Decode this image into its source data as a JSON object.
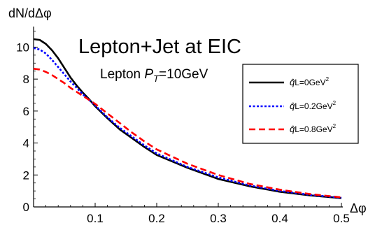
{
  "chart_data": {
    "type": "line",
    "title": "Lepton+Jet at EIC",
    "subtitle": "Lepton P_T=10GeV",
    "subtitle_parts": {
      "prefix": "Lepton ",
      "var": "P",
      "sub": "T",
      "suffix": "=10GeV"
    },
    "ylabel": "dN/dΔφ",
    "xlabel": "Δφ",
    "xlim": [
      0,
      0.5
    ],
    "ylim": [
      0,
      11.2
    ],
    "x_ticks": [
      0.1,
      0.2,
      0.3,
      0.4,
      0.5
    ],
    "x_tick_labels": [
      "0.1",
      "0.2",
      "0.3",
      "0.4",
      "0.5"
    ],
    "y_ticks": [
      0,
      2,
      4,
      6,
      8,
      10
    ],
    "y_tick_labels": [
      "0",
      "2",
      "4",
      "6",
      "8",
      "10"
    ],
    "grid": false,
    "legend_position": "right",
    "x": [
      0.0,
      0.01,
      0.02,
      0.03,
      0.04,
      0.05,
      0.06,
      0.07,
      0.08,
      0.09,
      0.1,
      0.12,
      0.14,
      0.16,
      0.18,
      0.2,
      0.25,
      0.3,
      0.35,
      0.4,
      0.45,
      0.5
    ],
    "series": [
      {
        "name": "q̂L=0GeV²",
        "legend_label": "L=0GeV",
        "color": "#000000",
        "style": "solid",
        "values": [
          10.5,
          10.45,
          10.2,
          9.8,
          9.3,
          8.7,
          8.1,
          7.6,
          7.15,
          6.75,
          6.3,
          5.55,
          4.85,
          4.3,
          3.75,
          3.25,
          2.45,
          1.75,
          1.3,
          0.95,
          0.72,
          0.55
        ]
      },
      {
        "name": "q̂L=0.2GeV²",
        "legend_label": "L=0.2GeV",
        "color": "#0000ff",
        "style": "dotted",
        "values": [
          9.95,
          9.85,
          9.6,
          9.2,
          8.75,
          8.3,
          7.85,
          7.45,
          7.05,
          6.7,
          6.35,
          5.6,
          4.95,
          4.4,
          3.85,
          3.35,
          2.5,
          1.85,
          1.35,
          1.0,
          0.75,
          0.57
        ]
      },
      {
        "name": "q̂L=0.8GeV²",
        "legend_label": "L=0.8GeV",
        "color": "#ff0000",
        "style": "dashed",
        "values": [
          8.65,
          8.6,
          8.45,
          8.25,
          8.0,
          7.75,
          7.45,
          7.2,
          6.95,
          6.7,
          6.45,
          5.85,
          5.25,
          4.65,
          4.1,
          3.6,
          2.7,
          2.0,
          1.45,
          1.08,
          0.8,
          0.6
        ]
      }
    ]
  }
}
